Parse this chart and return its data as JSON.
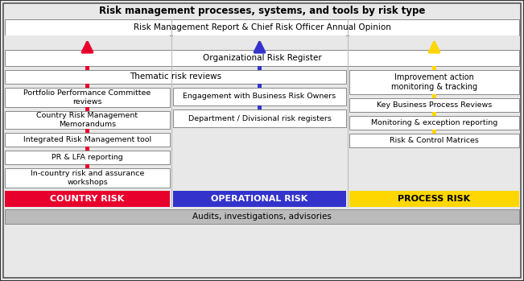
{
  "title": "Risk management processes, systems, and tools by risk type",
  "top_box": "Risk Management Report & Chief Risk Officer Annual Opinion",
  "org_risk_box": "Organizational Risk Register",
  "thematic_box": "Thematic risk reviews",
  "audits_box": "Audits, investigations, advisories",
  "country_label": "COUNTRY RISK",
  "operational_label": "OPERATIONAL RISK",
  "process_label": "PROCESS RISK",
  "country_color": "#E8002D",
  "operational_color": "#3333CC",
  "process_color": "#FFD700",
  "country_boxes": [
    "Portfolio Performance Committee\nreviews",
    "Country Risk Management\nMemorandums",
    "Integrated Risk Management tool",
    "PR & LFA reporting",
    "In-country risk and assurance\nworkshops"
  ],
  "operational_boxes": [
    "Engagement with Business Risk Owners",
    "Department / Divisional risk registers"
  ],
  "process_boxes": [
    "Improvement action\nmonitoring & tracking",
    "Key Business Process Reviews",
    "Monitoring & exception reporting",
    "Risk & Control Matrices"
  ],
  "outer_bg": "#E8E8E8",
  "box_fill": "#FFFFFF",
  "audits_fill": "#BBBBBB",
  "sep_color": "#BBBBBB",
  "border_color": "#888888"
}
